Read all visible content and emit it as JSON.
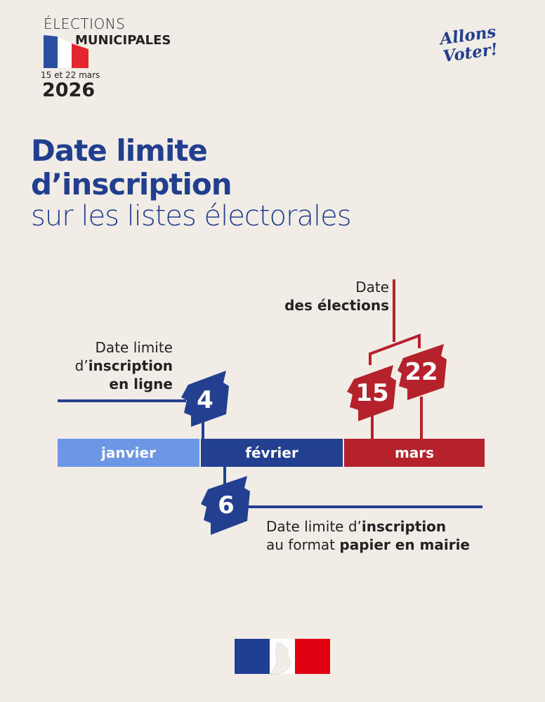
{
  "header": {
    "line1": "ÉLECTIONS",
    "line2": "MUNICIPALES",
    "dates": "15 et 22 mars",
    "year": "2026",
    "slogan_line1": "Allons",
    "slogan_line2": "Voter!"
  },
  "title": {
    "line1": "Date limite",
    "line2": "d’inscription",
    "line3": "sur les listes électorales"
  },
  "timeline": {
    "months": [
      "janvier",
      "février",
      "mars"
    ],
    "online": {
      "day": "4",
      "l1": "Date limite",
      "l2a": "d’",
      "l2b": "inscription",
      "l3": "en ligne"
    },
    "paper": {
      "day": "6",
      "l1a": "Date limite d’",
      "l1b": "inscription",
      "l2a": "au format ",
      "l2b": "papier en mairie"
    },
    "elections": {
      "days": [
        "15",
        "22"
      ],
      "l1": "Date",
      "l2": "des élections"
    }
  },
  "colors": {
    "background": "#f2ece6",
    "blue": "#233f8f",
    "light_blue": "#6e96e6",
    "red": "#b5222c"
  }
}
